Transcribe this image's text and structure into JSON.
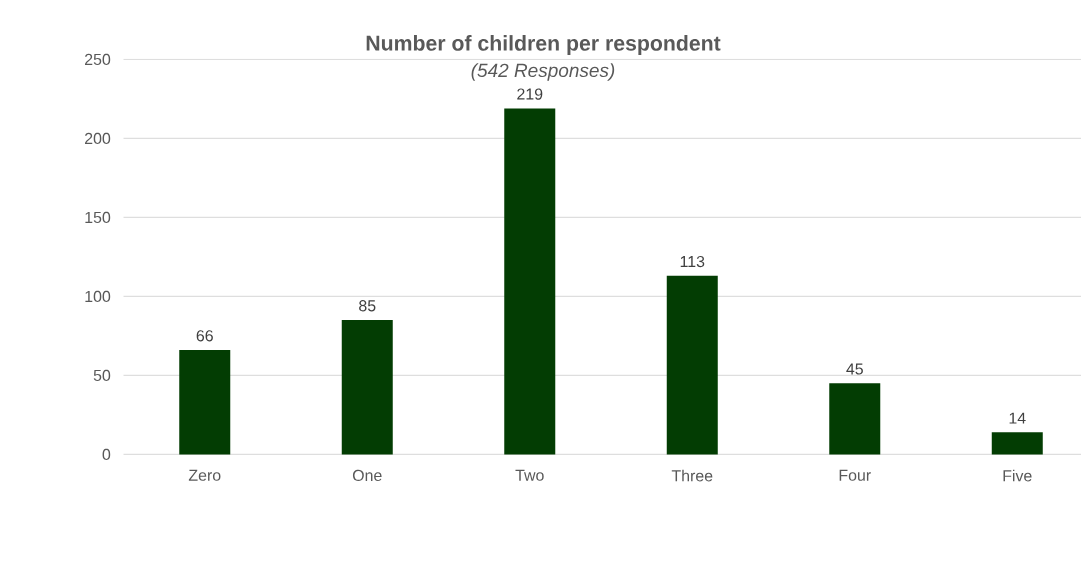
{
  "chart_data": {
    "type": "bar",
    "title": "Number of children per respondent",
    "subtitle": "(542 Responses)",
    "categories": [
      "Zero",
      "One",
      "Two",
      "Three",
      "Four",
      "Five"
    ],
    "values": [
      66,
      85,
      219,
      113,
      45,
      14
    ],
    "color": "#033d03",
    "ylim": [
      0,
      250
    ],
    "yticks": [
      0,
      50,
      100,
      150,
      200,
      250
    ],
    "grid": "y",
    "data_labels": true
  }
}
